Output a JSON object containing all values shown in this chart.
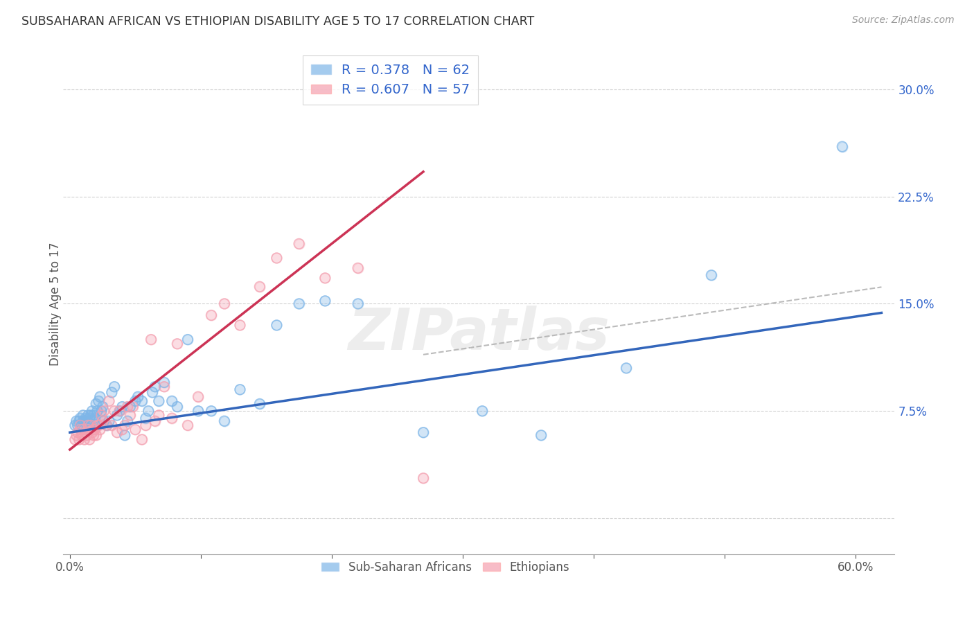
{
  "title": "SUBSAHARAN AFRICAN VS ETHIOPIAN DISABILITY AGE 5 TO 17 CORRELATION CHART",
  "source": "Source: ZipAtlas.com",
  "ylabel": "Disability Age 5 to 17",
  "blue_R": 0.378,
  "blue_N": 62,
  "pink_R": 0.607,
  "pink_N": 57,
  "legend_label_blue": "Sub-Saharan Africans",
  "legend_label_pink": "Ethiopians",
  "blue_color": "#7EB6E8",
  "pink_color": "#F4A0B0",
  "blue_line_color": "#3366BB",
  "pink_line_color": "#CC3355",
  "dash_line_color": "#AAAAAA",
  "legend_text_color": "#3366CC",
  "title_color": "#333333",
  "xlim": [
    -0.005,
    0.63
  ],
  "ylim": [
    -0.025,
    0.325
  ],
  "x_ticks": [
    0.0,
    0.1,
    0.2,
    0.3,
    0.4,
    0.5,
    0.6
  ],
  "y_ticks": [
    0.0,
    0.075,
    0.15,
    0.225,
    0.3
  ],
  "blue_intercept": 0.06,
  "blue_slope": 0.135,
  "pink_intercept": 0.048,
  "pink_slope": 0.72,
  "blue_x": [
    0.004,
    0.005,
    0.006,
    0.007,
    0.008,
    0.009,
    0.01,
    0.01,
    0.011,
    0.012,
    0.013,
    0.014,
    0.015,
    0.016,
    0.017,
    0.018,
    0.018,
    0.019,
    0.02,
    0.021,
    0.022,
    0.023,
    0.024,
    0.025,
    0.026,
    0.028,
    0.03,
    0.032,
    0.034,
    0.036,
    0.038,
    0.04,
    0.042,
    0.044,
    0.046,
    0.05,
    0.052,
    0.055,
    0.058,
    0.06,
    0.063,
    0.065,
    0.068,
    0.072,
    0.078,
    0.082,
    0.09,
    0.098,
    0.108,
    0.118,
    0.13,
    0.145,
    0.158,
    0.175,
    0.195,
    0.22,
    0.27,
    0.315,
    0.36,
    0.425,
    0.49,
    0.59
  ],
  "blue_y": [
    0.065,
    0.068,
    0.065,
    0.068,
    0.07,
    0.065,
    0.068,
    0.072,
    0.068,
    0.07,
    0.068,
    0.072,
    0.07,
    0.072,
    0.075,
    0.072,
    0.068,
    0.07,
    0.08,
    0.075,
    0.082,
    0.085,
    0.075,
    0.078,
    0.068,
    0.065,
    0.068,
    0.088,
    0.092,
    0.072,
    0.075,
    0.078,
    0.058,
    0.068,
    0.078,
    0.082,
    0.085,
    0.082,
    0.07,
    0.075,
    0.088,
    0.092,
    0.082,
    0.095,
    0.082,
    0.078,
    0.125,
    0.075,
    0.075,
    0.068,
    0.09,
    0.08,
    0.135,
    0.15,
    0.152,
    0.15,
    0.06,
    0.075,
    0.058,
    0.105,
    0.17,
    0.26
  ],
  "pink_x": [
    0.004,
    0.005,
    0.006,
    0.007,
    0.008,
    0.008,
    0.009,
    0.01,
    0.011,
    0.012,
    0.013,
    0.014,
    0.014,
    0.015,
    0.016,
    0.017,
    0.018,
    0.018,
    0.019,
    0.02,
    0.021,
    0.022,
    0.023,
    0.024,
    0.025,
    0.026,
    0.028,
    0.03,
    0.032,
    0.034,
    0.036,
    0.038,
    0.04,
    0.042,
    0.044,
    0.046,
    0.048,
    0.05,
    0.055,
    0.058,
    0.062,
    0.065,
    0.068,
    0.072,
    0.078,
    0.082,
    0.09,
    0.098,
    0.108,
    0.118,
    0.13,
    0.145,
    0.158,
    0.175,
    0.195,
    0.22,
    0.27
  ],
  "pink_y": [
    0.055,
    0.058,
    0.06,
    0.055,
    0.062,
    0.065,
    0.058,
    0.062,
    0.055,
    0.06,
    0.058,
    0.062,
    0.065,
    0.055,
    0.065,
    0.06,
    0.062,
    0.058,
    0.062,
    0.058,
    0.065,
    0.065,
    0.062,
    0.072,
    0.068,
    0.075,
    0.065,
    0.082,
    0.065,
    0.075,
    0.06,
    0.075,
    0.062,
    0.065,
    0.078,
    0.072,
    0.078,
    0.062,
    0.055,
    0.065,
    0.125,
    0.068,
    0.072,
    0.092,
    0.07,
    0.122,
    0.065,
    0.085,
    0.142,
    0.15,
    0.135,
    0.162,
    0.182,
    0.192,
    0.168,
    0.175,
    0.028
  ]
}
